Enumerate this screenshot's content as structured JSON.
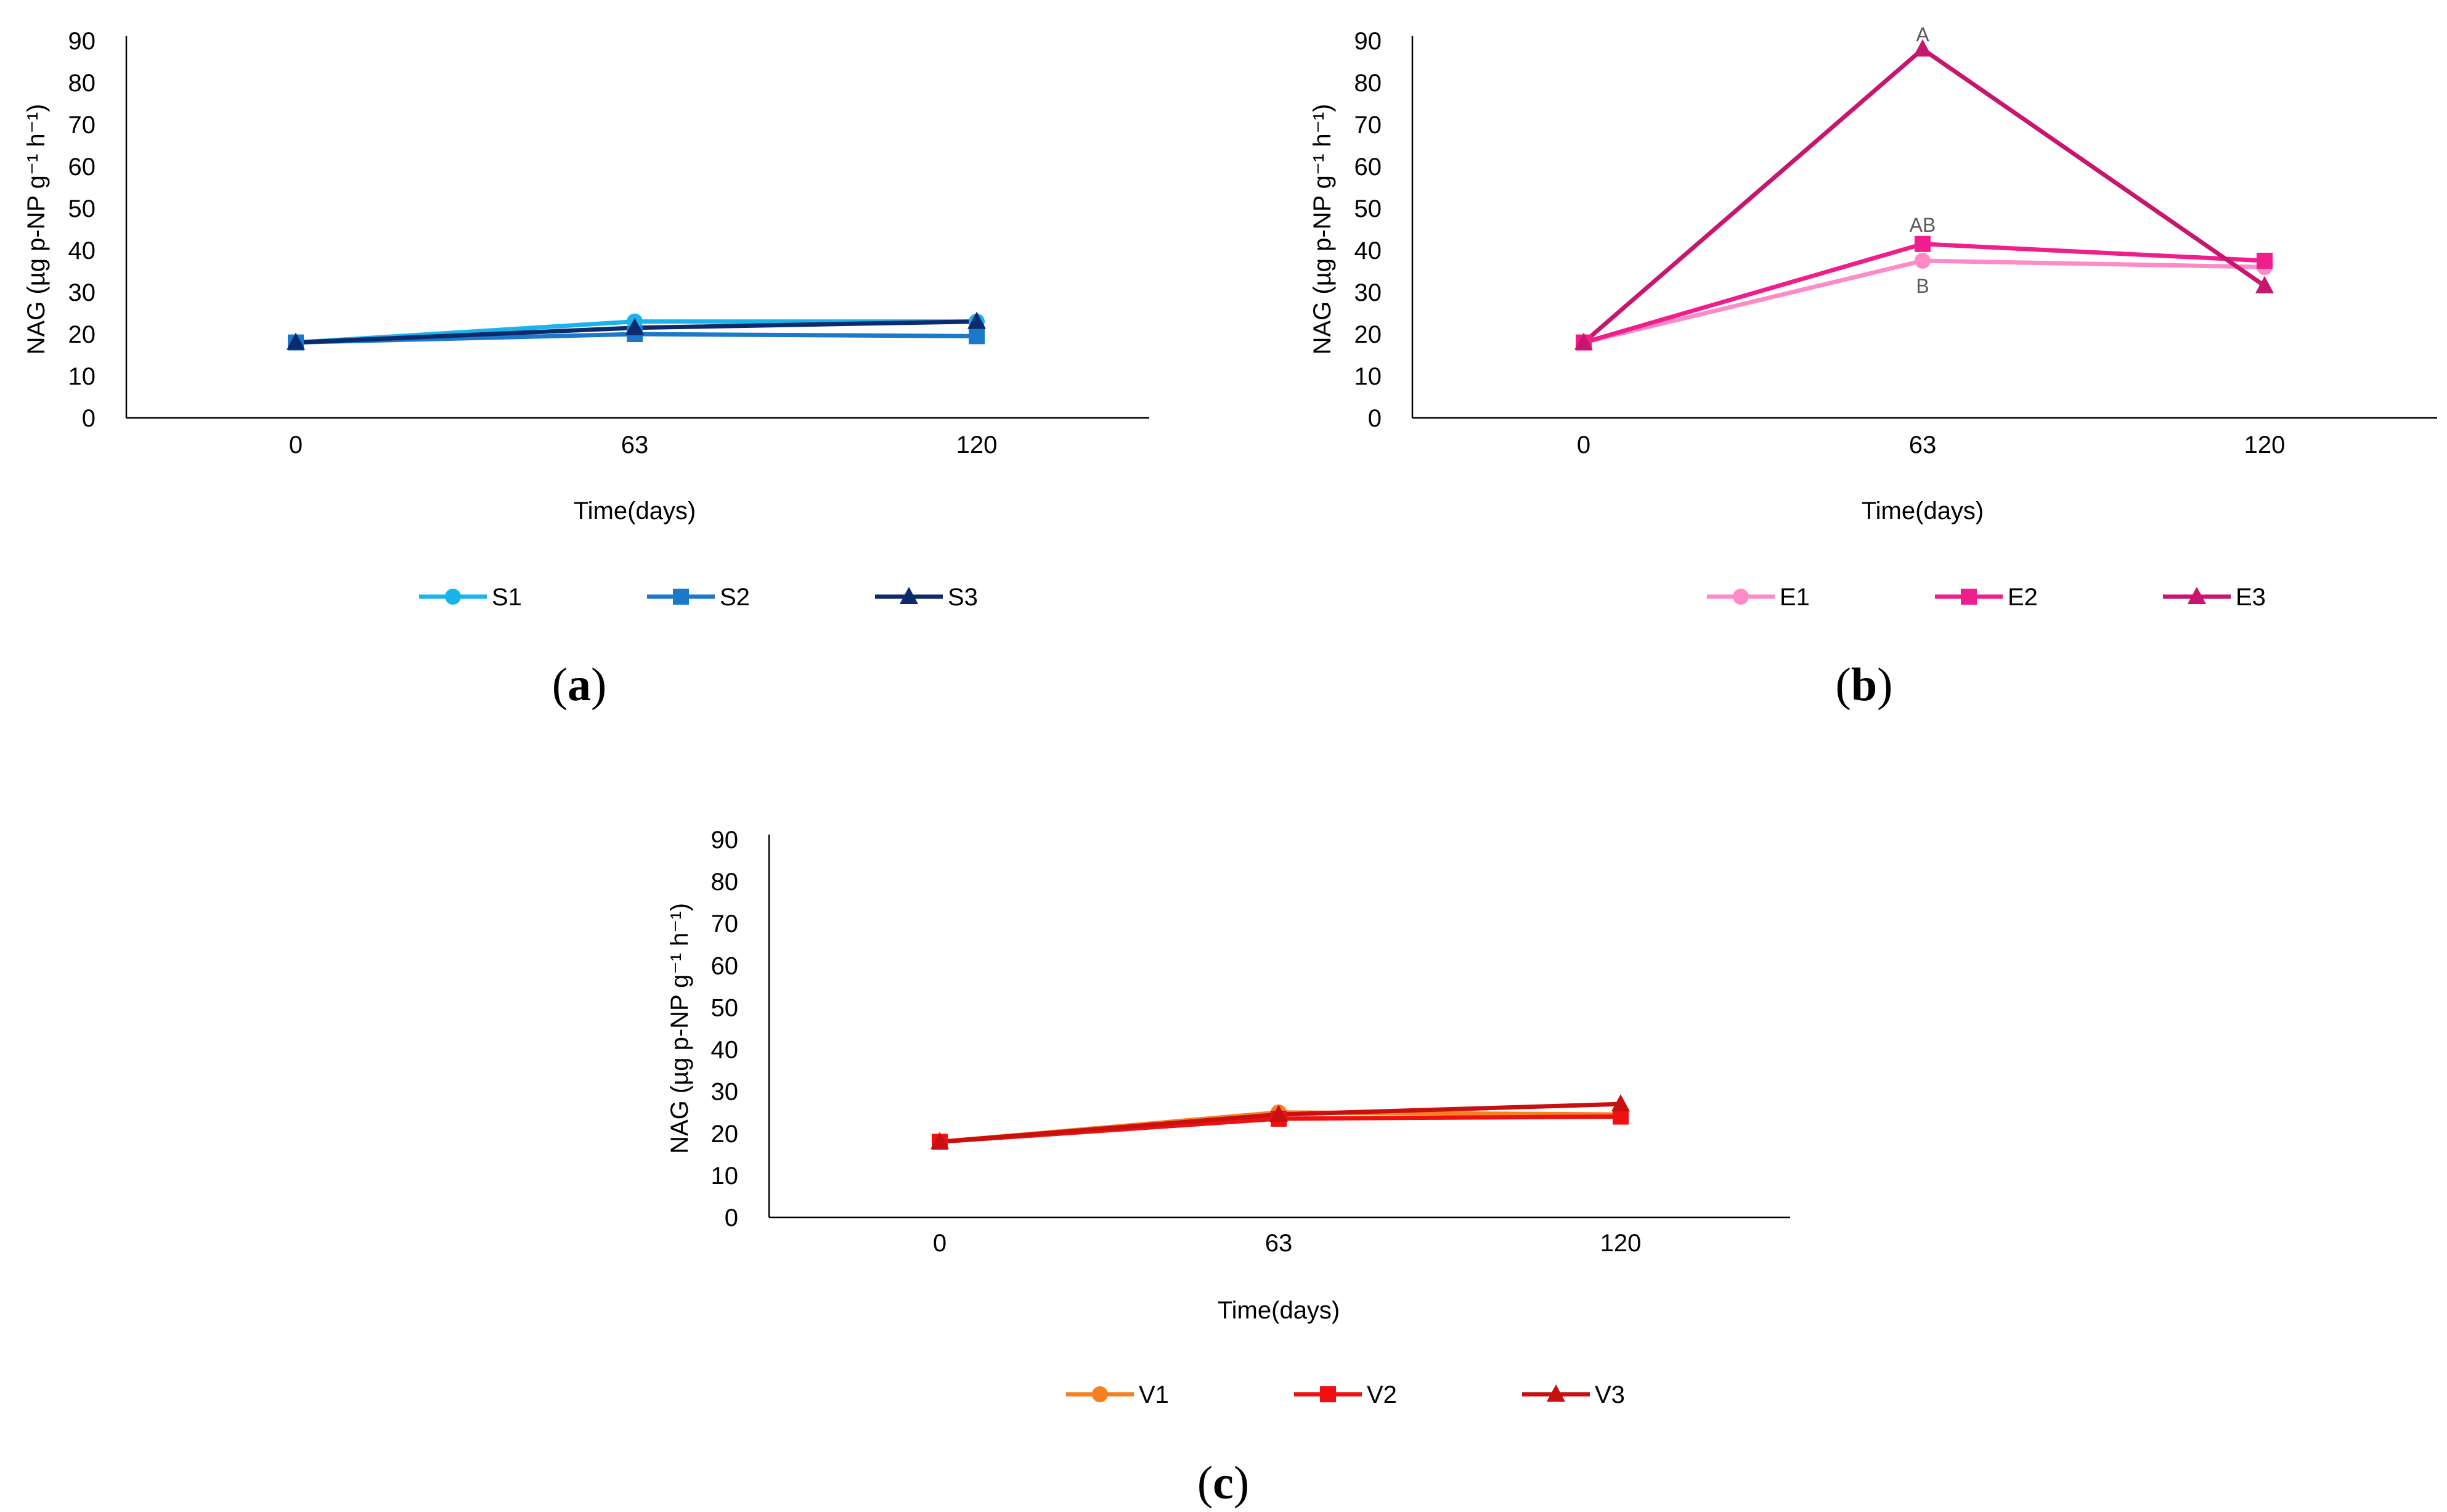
{
  "chart_data": [
    {
      "type": "line",
      "panel": "a",
      "xlabel": "Time(days)",
      "ylabel": "NAG (µg p-NP g⁻¹ h⁻¹)",
      "categories": [
        "0",
        "63",
        "120"
      ],
      "ylim": [
        0,
        90
      ],
      "yticks": [
        0,
        10,
        20,
        30,
        40,
        50,
        60,
        70,
        80,
        90
      ],
      "series": [
        {
          "name": "S1",
          "values": [
            18,
            23,
            23
          ],
          "color": "#19B4EC",
          "marker": "circle"
        },
        {
          "name": "S2",
          "values": [
            18,
            20,
            19.5
          ],
          "color": "#1C78C8",
          "marker": "square"
        },
        {
          "name": "S3",
          "values": [
            18,
            21.5,
            23
          ],
          "color": "#0D2A6E",
          "marker": "triangle"
        }
      ],
      "annotations": [],
      "legend": "bottom",
      "caption": {
        "open": "(",
        "letter": "a",
        "close": ")"
      }
    },
    {
      "type": "line",
      "panel": "b",
      "xlabel": "Time(days)",
      "ylabel": "NAG (µg p-NP g⁻¹ h⁻¹)",
      "categories": [
        "0",
        "63",
        "120"
      ],
      "ylim": [
        0,
        90
      ],
      "yticks": [
        0,
        10,
        20,
        30,
        40,
        50,
        60,
        70,
        80,
        90
      ],
      "series": [
        {
          "name": "E1",
          "values": [
            18,
            37.5,
            36
          ],
          "color": "#FF8AC8",
          "marker": "circle"
        },
        {
          "name": "E2",
          "values": [
            18,
            41.5,
            37.5
          ],
          "color": "#F01E8C",
          "marker": "square"
        },
        {
          "name": "E3",
          "values": [
            18,
            88,
            31.5
          ],
          "color": "#C8156E",
          "marker": "triangle"
        }
      ],
      "annotations": [
        {
          "text": "A",
          "category": "63",
          "value": 91.5
        },
        {
          "text": "AB",
          "category": "63",
          "value": 46
        },
        {
          "text": "B",
          "category": "63",
          "value": 31.5
        }
      ],
      "legend": "bottom",
      "caption": {
        "open": "(",
        "letter": "b",
        "close": ")"
      }
    },
    {
      "type": "line",
      "panel": "c",
      "xlabel": "Time(days)",
      "ylabel": "NAG (µg p-NP g⁻¹ h⁻¹)",
      "categories": [
        "0",
        "63",
        "120"
      ],
      "ylim": [
        0,
        90
      ],
      "yticks": [
        0,
        10,
        20,
        30,
        40,
        50,
        60,
        70,
        80,
        90
      ],
      "series": [
        {
          "name": "V1",
          "values": [
            18,
            25,
            24.5
          ],
          "color": "#F58220",
          "marker": "circle"
        },
        {
          "name": "V2",
          "values": [
            18,
            23.5,
            24
          ],
          "color": "#F01010",
          "marker": "square"
        },
        {
          "name": "V3",
          "values": [
            18,
            24.5,
            27
          ],
          "color": "#C81010",
          "marker": "triangle"
        }
      ],
      "annotations": [],
      "legend": "bottom",
      "caption": {
        "open": "(",
        "letter": "c",
        "close": ")"
      }
    }
  ]
}
